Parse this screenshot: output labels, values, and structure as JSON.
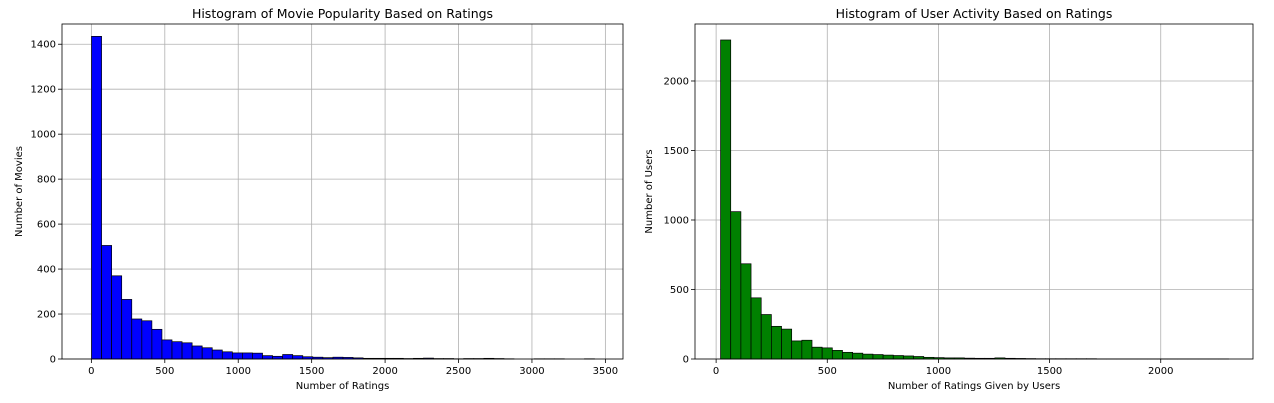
{
  "chart_data": [
    {
      "type": "bar",
      "title": "Histogram of Movie Popularity Based on Ratings",
      "xlabel": "Number of Ratings",
      "ylabel": "Number of Movies",
      "xlim": [
        -200,
        3620
      ],
      "ylim": [
        0,
        1490
      ],
      "xticks": [
        0,
        500,
        1000,
        1500,
        2000,
        2500,
        3000,
        3500
      ],
      "yticks": [
        0,
        200,
        400,
        600,
        800,
        1000,
        1200,
        1400
      ],
      "grid": true,
      "bar_color": "#0000ff",
      "edge_color": "#000000",
      "bin_start": 1,
      "bin_width": 68.5,
      "values": [
        1435,
        505,
        370,
        265,
        178,
        170,
        132,
        85,
        77,
        72,
        58,
        50,
        40,
        32,
        27,
        27,
        26,
        15,
        12,
        20,
        15,
        10,
        8,
        6,
        8,
        7,
        5,
        3,
        3,
        3,
        3,
        2,
        3,
        4,
        2,
        2,
        1,
        2,
        2,
        3,
        2,
        1,
        0,
        0,
        1,
        1,
        1,
        0,
        0,
        1
      ]
    },
    {
      "type": "bar",
      "title": "Histogram of User Activity Based on Ratings",
      "xlabel": "Number of Ratings Given by Users",
      "ylabel": "Number of Users",
      "xlim": [
        -95,
        2415
      ],
      "ylim": [
        0,
        2410
      ],
      "xticks": [
        0,
        500,
        1000,
        1500,
        2000
      ],
      "yticks": [
        0,
        500,
        1000,
        1500,
        2000
      ],
      "grid": true,
      "bar_color": "#008000",
      "edge_color": "#000000",
      "bin_start": 20,
      "bin_width": 45.7,
      "values": [
        2295,
        1060,
        685,
        440,
        320,
        235,
        215,
        130,
        135,
        85,
        80,
        62,
        48,
        42,
        35,
        32,
        28,
        25,
        22,
        18,
        12,
        10,
        8,
        8,
        6,
        5,
        5,
        8,
        5,
        4,
        3,
        2,
        2,
        2,
        2,
        2,
        2,
        1,
        1,
        1,
        1,
        1,
        1,
        1,
        1,
        1,
        1,
        1,
        1,
        1
      ]
    }
  ]
}
